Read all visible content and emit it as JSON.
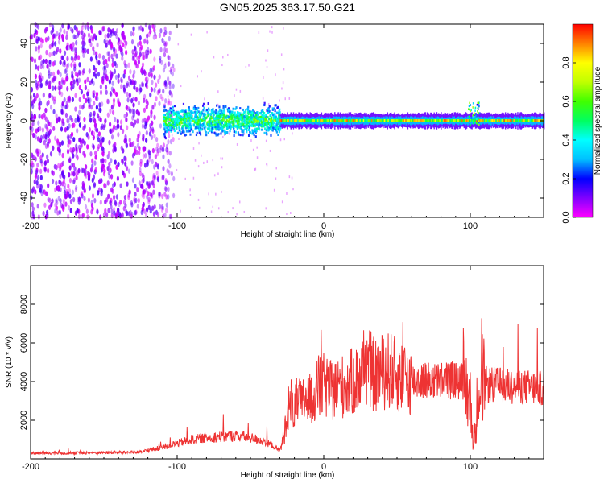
{
  "chart_data": [
    {
      "type": "heatmap",
      "title": "GN05.2025.363.17.50.G21",
      "xlabel": "Height of straight line (km)",
      "ylabel": "Frequency (Hz)",
      "xlim": [
        -200,
        150
      ],
      "ylim": [
        -50,
        50
      ],
      "xticks": [
        -200,
        -100,
        0,
        100
      ],
      "xtick_labels": [
        "-200",
        "-100",
        "0",
        "100"
      ],
      "yticks": [
        -40,
        -20,
        0,
        20,
        40
      ],
      "ytick_labels": [
        "-40",
        "-20",
        "0",
        "20",
        "40"
      ],
      "colorbar": {
        "label": "Normalized spectral amplitude",
        "range": [
          0,
          1
        ],
        "ticks": [
          0.0,
          0.2,
          0.4,
          0.6,
          0.8
        ],
        "tick_labels": [
          "0.0",
          "0.2",
          "0.4",
          "0.6",
          "0.8"
        ],
        "colors": [
          "#ff00ff",
          "#8000ff",
          "#0000ff",
          "#00c0ff",
          "#00ffff",
          "#00ff60",
          "#40ff00",
          "#c0ff00",
          "#ffff00",
          "#ff8000",
          "#ff0000"
        ]
      },
      "regions": [
        {
          "x_range": [
            -200,
            -110
          ],
          "f_range": [
            -50,
            50
          ],
          "amplitude": 0.12,
          "description": "scattered noise"
        },
        {
          "x_range": [
            -110,
            -30
          ],
          "f_range": [
            -10,
            10
          ],
          "amplitude": 0.3,
          "description": "broad band around 0 Hz"
        },
        {
          "x_range": [
            -30,
            150
          ],
          "f_range": [
            -2,
            2
          ],
          "amplitude": 0.8,
          "description": "narrow line near 0 Hz"
        },
        {
          "x_range": [
            98,
            106
          ],
          "f_range": [
            -2,
            10
          ],
          "amplitude": 0.6,
          "description": "feature near 100 km"
        }
      ]
    },
    {
      "type": "line",
      "title": "",
      "xlabel": "Height of straight line (km)",
      "ylabel": "SNR (10 * v/v)",
      "xlim": [
        -200,
        150
      ],
      "ylim": [
        0,
        10000
      ],
      "xticks": [
        -200,
        -100,
        0,
        100
      ],
      "xtick_labels": [
        "-200",
        "-100",
        "0",
        "100"
      ],
      "yticks": [
        2000,
        4000,
        6000,
        8000
      ],
      "ytick_labels": [
        "2000",
        "4000",
        "6000",
        "8000"
      ],
      "color": "#ee3333",
      "series": [
        {
          "name": "SNR",
          "x": [
            -200,
            -180,
            -160,
            -140,
            -125,
            -110,
            -100,
            -90,
            -80,
            -70,
            -60,
            -50,
            -40,
            -35,
            -30,
            -27,
            -25,
            -22,
            -20,
            -18,
            -15,
            -12,
            -10,
            -5,
            0,
            5,
            10,
            15,
            20,
            25,
            28,
            30,
            35,
            40,
            45,
            50,
            55,
            60,
            65,
            70,
            75,
            80,
            85,
            90,
            95,
            98,
            100,
            102,
            104,
            105,
            106,
            108,
            110,
            120,
            130,
            140,
            150
          ],
          "values": [
            300,
            300,
            320,
            330,
            350,
            600,
            800,
            1000,
            1100,
            1150,
            1200,
            1100,
            900,
            700,
            400,
            1200,
            2500,
            3000,
            2500,
            3000,
            2800,
            3300,
            3000,
            3500,
            3800,
            3500,
            3700,
            3800,
            4000,
            4200,
            5000,
            4800,
            4300,
            4500,
            4600,
            4300,
            4200,
            4000,
            4100,
            4050,
            4000,
            4050,
            4100,
            4050,
            4000,
            3500,
            3000,
            900,
            1500,
            4000,
            3900,
            4200,
            3850,
            3800,
            3750,
            3700,
            3650
          ]
        }
      ],
      "noise_amplitude_note": "signal is highly noisy; values above are the envelope center"
    }
  ]
}
